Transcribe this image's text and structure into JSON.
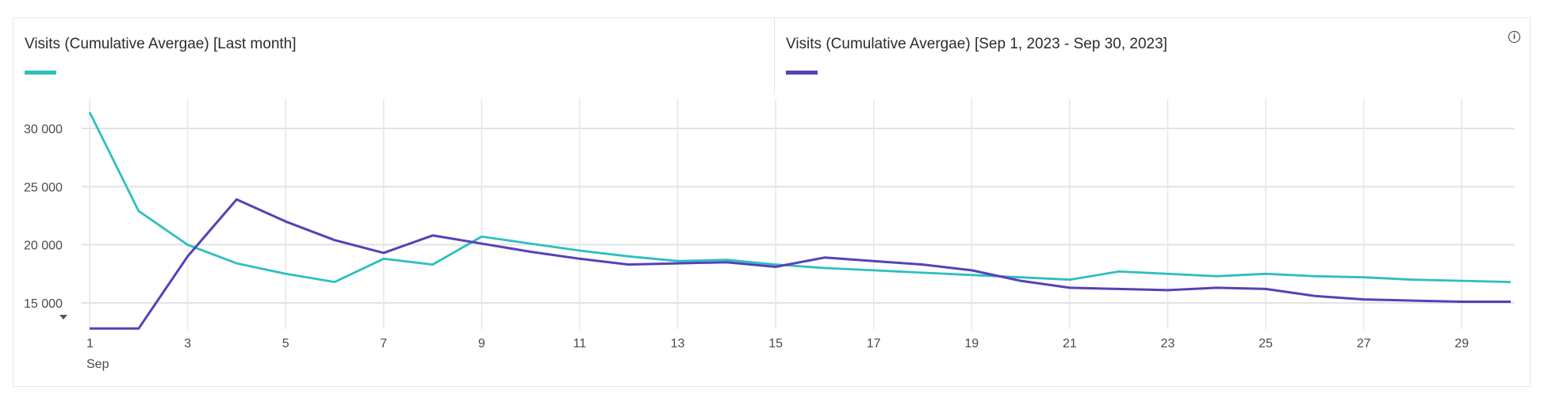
{
  "legend": [
    {
      "label": "Visits (Cumulative Avergae) [Last month]",
      "color": "#2EBFBF"
    },
    {
      "label": "Visits (Cumulative Avergae) [Sep 1, 2023 - Sep 30, 2023]",
      "color": "#5641B8"
    }
  ],
  "info_icon": "info-icon",
  "chart_data": {
    "type": "line",
    "title": "",
    "xlabel": "Sep",
    "ylabel": "",
    "x": [
      1,
      2,
      3,
      4,
      5,
      6,
      7,
      8,
      9,
      10,
      11,
      12,
      13,
      14,
      15,
      16,
      17,
      18,
      19,
      20,
      21,
      22,
      23,
      24,
      25,
      26,
      27,
      28,
      29,
      30
    ],
    "x_tick_labels": [
      "1",
      "3",
      "5",
      "7",
      "9",
      "11",
      "13",
      "15",
      "17",
      "19",
      "21",
      "23",
      "25",
      "27",
      "29"
    ],
    "x_tick_values": [
      1,
      3,
      5,
      7,
      9,
      11,
      13,
      15,
      17,
      19,
      21,
      23,
      25,
      27,
      29
    ],
    "x_sublabel": "Sep",
    "y_tick_labels": [
      "15 000",
      "20 000",
      "25 000",
      "30 000"
    ],
    "y_tick_values": [
      15000,
      20000,
      25000,
      30000
    ],
    "ylim": [
      12300,
      32500
    ],
    "xlim": [
      1,
      30
    ],
    "grid": true,
    "legend_position": "top",
    "series": [
      {
        "name": "Visits (Cumulative Avergae) [Last month]",
        "color": "#2EBFBF",
        "values": [
          31400,
          22900,
          20000,
          18400,
          17500,
          16800,
          18800,
          18300,
          20700,
          20100,
          19500,
          19000,
          18600,
          18700,
          18300,
          18000,
          17800,
          17600,
          17400,
          17200,
          17000,
          17700,
          17500,
          17300,
          17500,
          17300,
          17200,
          17000,
          16900,
          16800
        ]
      },
      {
        "name": "Visits (Cumulative Avergae) [Sep 1, 2023 - Sep 30, 2023]",
        "color": "#5641B8",
        "values": [
          12800,
          12800,
          19000,
          23900,
          22000,
          20400,
          19300,
          20800,
          20100,
          19400,
          18800,
          18300,
          18400,
          18500,
          18100,
          18900,
          18600,
          18300,
          17800,
          16900,
          16300,
          16200,
          16100,
          16300,
          16200,
          15600,
          15300,
          15200,
          15100,
          15100
        ]
      }
    ]
  }
}
